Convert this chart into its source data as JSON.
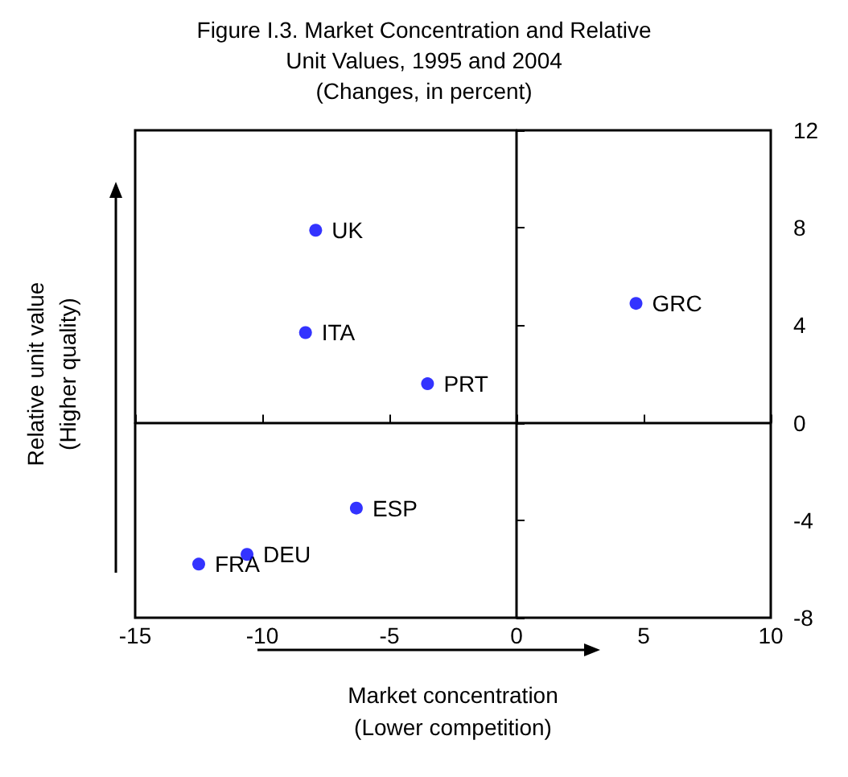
{
  "chart_data": {
    "type": "scatter",
    "title": "Figure I.3. Market Concentration and Relative\nUnit Values, 1995 and 2004\n(Changes, in percent)",
    "xlabel": "Market concentration\n(Lower competition)",
    "ylabel": "Relative unit value\n(Higher quality)",
    "x": [
      -7.9,
      -8.3,
      -3.5,
      4.7,
      -6.3,
      -10.6,
      -12.5
    ],
    "series": [
      {
        "color": "#0000ff",
        "values": [
          7.9,
          3.7,
          1.6,
          4.9,
          -3.5,
          -5.4,
          -5.8
        ]
      }
    ],
    "annotations": [
      {
        "text": "UK",
        "x": -7.9,
        "y": 7.9
      },
      {
        "text": "ITA",
        "x": -8.3,
        "y": 3.7
      },
      {
        "text": "PRT",
        "x": -3.5,
        "y": 1.6
      },
      {
        "text": "GRC",
        "x": 4.7,
        "y": 4.9
      },
      {
        "text": "ESP",
        "x": -6.3,
        "y": -3.5
      },
      {
        "text": "DEU",
        "x": -10.6,
        "y": -5.4
      },
      {
        "text": "FRA",
        "x": -12.5,
        "y": -5.8
      }
    ],
    "xlim": [
      -15,
      10
    ],
    "xticks": [
      -15,
      -10,
      -5,
      0,
      5,
      10
    ],
    "ylim": [
      -8,
      12
    ],
    "yticks": [
      -8,
      -4,
      0,
      4,
      8,
      12
    ],
    "marker": "circle"
  }
}
